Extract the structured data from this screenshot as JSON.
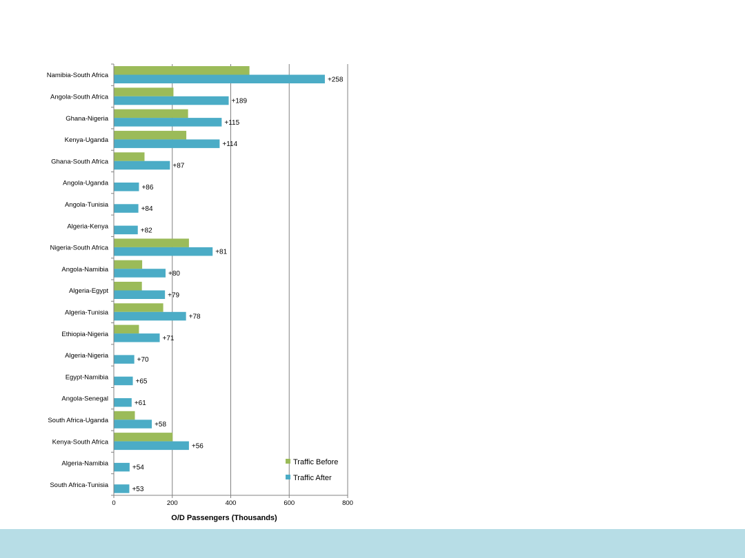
{
  "chart_data": {
    "type": "bar",
    "orientation": "horizontal",
    "categories": [
      "Namibia-South Africa",
      "Angola-South Africa",
      "Ghana-Nigeria",
      "Kenya-Uganda",
      "Ghana-South Africa",
      "Angola-Uganda",
      "Angola-Tunisia",
      "Algeria-Kenya",
      "Nigeria-South Africa",
      "Angola-Namibia",
      "Algeria-Egypt",
      "Algeria-Tunisia",
      "Ethiopia-Nigeria",
      "Algeria-Nigeria",
      "Egypt-Namibia",
      "Angola-Senegal",
      "South Africa-Uganda",
      "Kenya-South Africa",
      "Algeria-Namibia",
      "South Africa-Tunisia"
    ],
    "series": [
      {
        "name": "Traffic Before",
        "color": "#9bbb59",
        "values": [
          464,
          204,
          254,
          248,
          105,
          0,
          0,
          0,
          257,
          97,
          96,
          169,
          86,
          0,
          0,
          0,
          72,
          201,
          0,
          0
        ]
      },
      {
        "name": "Traffic After",
        "color": "#4bacc6",
        "values": [
          722,
          393,
          369,
          362,
          192,
          86,
          84,
          82,
          338,
          177,
          175,
          247,
          157,
          70,
          65,
          61,
          130,
          257,
          54,
          53
        ]
      }
    ],
    "data_labels": [
      "+258",
      "+189",
      "+115",
      "+114",
      "+87",
      "+86",
      "+84",
      "+82",
      "+81",
      "+80",
      "+79",
      "+78",
      "+71",
      "+70",
      "+65",
      "+61",
      "+58",
      "+56",
      "+54",
      "+53"
    ],
    "xlabel": "O/D Passengers (Thousands)",
    "xlim": [
      0,
      800
    ],
    "xticks": [
      "0",
      "200",
      "400",
      "600",
      "800"
    ],
    "grid": "vertical",
    "legend_position": "bottom-right"
  }
}
